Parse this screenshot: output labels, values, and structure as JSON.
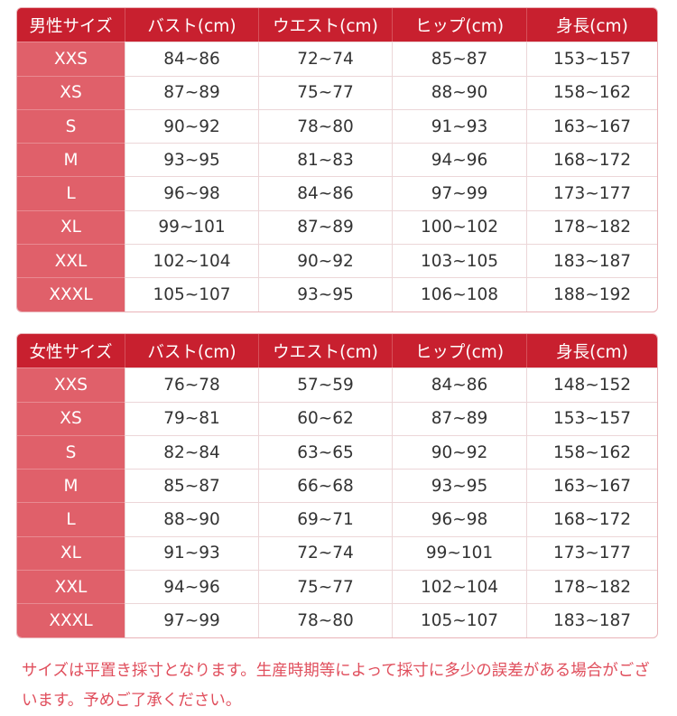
{
  "tables": [
    {
      "headers": [
        "男性サイズ",
        "バスト(cm)",
        "ウエスト(cm)",
        "ヒップ(cm)",
        "身長(cm)"
      ],
      "rows": [
        [
          "XXS",
          "84~86",
          "72~74",
          "85~87",
          "153~157"
        ],
        [
          "XS",
          "87~89",
          "75~77",
          "88~90",
          "158~162"
        ],
        [
          "S",
          "90~92",
          "78~80",
          "91~93",
          "163~167"
        ],
        [
          "M",
          "93~95",
          "81~83",
          "94~96",
          "168~172"
        ],
        [
          "L",
          "96~98",
          "84~86",
          "97~99",
          "173~177"
        ],
        [
          "XL",
          "99~101",
          "87~89",
          "100~102",
          "178~182"
        ],
        [
          "XXL",
          "102~104",
          "90~92",
          "103~105",
          "183~187"
        ],
        [
          "XXXL",
          "105~107",
          "93~95",
          "106~108",
          "188~192"
        ]
      ]
    },
    {
      "headers": [
        "女性サイズ",
        "バスト(cm)",
        "ウエスト(cm)",
        "ヒップ(cm)",
        "身長(cm)"
      ],
      "rows": [
        [
          "XXS",
          "76~78",
          "57~59",
          "84~86",
          "148~152"
        ],
        [
          "XS",
          "79~81",
          "60~62",
          "87~89",
          "153~157"
        ],
        [
          "S",
          "82~84",
          "63~65",
          "90~92",
          "158~162"
        ],
        [
          "M",
          "85~87",
          "66~68",
          "93~95",
          "163~167"
        ],
        [
          "L",
          "88~90",
          "69~71",
          "96~98",
          "168~172"
        ],
        [
          "XL",
          "91~93",
          "72~74",
          "99~101",
          "173~177"
        ],
        [
          "XXL",
          "94~96",
          "75~77",
          "102~104",
          "178~182"
        ],
        [
          "XXXL",
          "97~99",
          "78~80",
          "105~107",
          "183~187"
        ]
      ]
    }
  ],
  "note": "サイズは平置き採寸となります。生産時期等によって採寸に多少の誤差がある場合がございます。予めご了承ください。",
  "colors": {
    "header": "#c8202f",
    "size_column": "#e0606a",
    "note": "#e04e5c"
  }
}
